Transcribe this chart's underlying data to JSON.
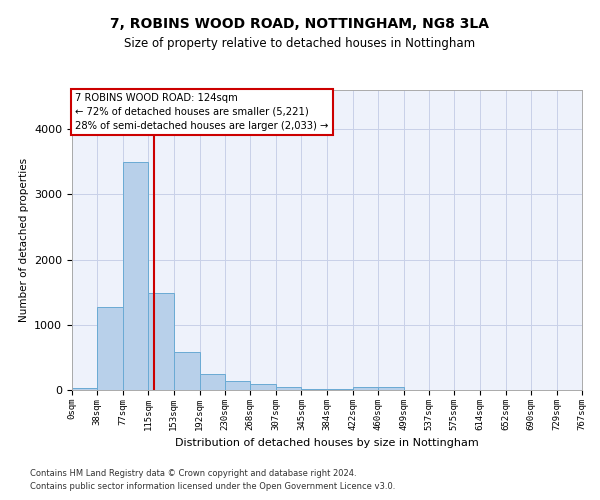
{
  "title": "7, ROBINS WOOD ROAD, NOTTINGHAM, NG8 3LA",
  "subtitle": "Size of property relative to detached houses in Nottingham",
  "xlabel": "Distribution of detached houses by size in Nottingham",
  "ylabel": "Number of detached properties",
  "bin_labels": [
    "0sqm",
    "38sqm",
    "77sqm",
    "115sqm",
    "153sqm",
    "192sqm",
    "230sqm",
    "268sqm",
    "307sqm",
    "345sqm",
    "384sqm",
    "422sqm",
    "460sqm",
    "499sqm",
    "537sqm",
    "575sqm",
    "614sqm",
    "652sqm",
    "690sqm",
    "729sqm",
    "767sqm"
  ],
  "bar_values": [
    30,
    1280,
    3500,
    1480,
    580,
    250,
    140,
    90,
    50,
    20,
    10,
    50,
    40,
    0,
    0,
    0,
    0,
    0,
    0,
    0
  ],
  "bar_color": "#b8d0ea",
  "bar_edge_color": "#6aaad4",
  "background_color": "#eef2fb",
  "grid_color": "#c8d0e8",
  "red_line_x": 124,
  "annotation_title": "7 ROBINS WOOD ROAD: 124sqm",
  "annotation_line2": "← 72% of detached houses are smaller (5,221)",
  "annotation_line3": "28% of semi-detached houses are larger (2,033) →",
  "annotation_box_color": "#ffffff",
  "annotation_box_edge": "#cc0000",
  "property_line_color": "#cc0000",
  "ylim": [
    0,
    4600
  ],
  "footer1": "Contains HM Land Registry data © Crown copyright and database right 2024.",
  "footer2": "Contains public sector information licensed under the Open Government Licence v3.0."
}
